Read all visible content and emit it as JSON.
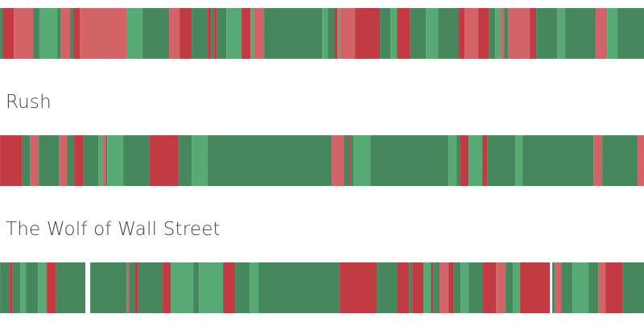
{
  "colors": {
    "dg": "#46875d",
    "lg": "#58aa75",
    "lr": "#d26468",
    "dr": "#c23b43",
    "gap": "#ffffff"
  },
  "chart_data": {
    "type": "heatmap",
    "description_units": "segment durations as percent of film runtime",
    "films": [
      {
        "title": "",
        "segments": [
          [
            "dg",
            0.375
          ],
          [
            "dr",
            1.75
          ],
          [
            "lr",
            3
          ],
          [
            "dg",
            1
          ],
          [
            "lg",
            2.75
          ],
          [
            "dg",
            0.5
          ],
          [
            "lr",
            1.5
          ],
          [
            "dg",
            0.5
          ],
          [
            "dr",
            1
          ],
          [
            "lr",
            7.25
          ],
          [
            "lg",
            2.5
          ],
          [
            "dg",
            4.125
          ],
          [
            "lr",
            1.625
          ],
          [
            "dr",
            1.875
          ],
          [
            "dg",
            2.5
          ],
          [
            "dr",
            0.5
          ],
          [
            "dg",
            0.5
          ],
          [
            "dr",
            0.375
          ],
          [
            "dg",
            1.5
          ],
          [
            "lg",
            2.375
          ],
          [
            "dr",
            1.375
          ],
          [
            "lg",
            0.5
          ],
          [
            "lr",
            1.625
          ],
          [
            "dg",
            9
          ],
          [
            "lg",
            0.875
          ],
          [
            "dg",
            1
          ],
          [
            "dr",
            0.5
          ],
          [
            "lg",
            0.375
          ],
          [
            "lr",
            2.375
          ],
          [
            "dr",
            3.875
          ],
          [
            "dg",
            1.625
          ],
          [
            "lg",
            1
          ],
          [
            "dr",
            2
          ],
          [
            "dg",
            2.5
          ],
          [
            "lg",
            1.875
          ],
          [
            "dg",
            3.125
          ],
          [
            "dr",
            1
          ],
          [
            "lr",
            2.125
          ],
          [
            "dr",
            1.625
          ],
          [
            "dg",
            1
          ],
          [
            "lg",
            0.875
          ],
          [
            "lr",
            0.5
          ],
          [
            "dg",
            0.625
          ],
          [
            "lr",
            3.375
          ],
          [
            "dr",
            1
          ],
          [
            "dg",
            3.25
          ],
          [
            "lg",
            1.25
          ],
          [
            "dg",
            4.75
          ],
          [
            "lr",
            1.75
          ],
          [
            "lg",
            1.625
          ],
          [
            "dg",
            4.125
          ]
        ]
      },
      {
        "title": "Rush",
        "segments": [
          [
            "dr",
            3.375
          ],
          [
            "dg",
            1.25
          ],
          [
            "lr",
            1.375
          ],
          [
            "dg",
            3.125
          ],
          [
            "lr",
            1.25
          ],
          [
            "dg",
            1.125
          ],
          [
            "dr",
            1.375
          ],
          [
            "dg",
            2.375
          ],
          [
            "lg",
            0.625
          ],
          [
            "lr",
            0.5
          ],
          [
            "dg",
            0.25
          ],
          [
            "lg",
            2.5
          ],
          [
            "dg",
            4.125
          ],
          [
            "dr",
            4.5
          ],
          [
            "dg",
            2
          ],
          [
            "lg",
            2.5
          ],
          [
            "dg",
            19.25
          ],
          [
            "lr",
            1.875
          ],
          [
            "dg",
            0.75
          ],
          [
            "dr",
            0.25
          ],
          [
            "dg",
            0.5
          ],
          [
            "lg",
            2.625
          ],
          [
            "dg",
            12.125
          ],
          [
            "lg",
            1.25
          ],
          [
            "dg",
            0.5
          ],
          [
            "dr",
            1.375
          ],
          [
            "lg",
            2.125
          ],
          [
            "dr",
            0.75
          ],
          [
            "dg",
            4.375
          ],
          [
            "lg",
            1.125
          ],
          [
            "dg",
            11
          ],
          [
            "lr",
            1.375
          ],
          [
            "dg",
            5.5
          ],
          [
            "lr",
            1
          ]
        ]
      },
      {
        "title": "The Wolf of Wall Street",
        "segments": [
          [
            "dg",
            1.5
          ],
          [
            "dr",
            0.375
          ],
          [
            "dg",
            1.25
          ],
          [
            "lg",
            0.875
          ],
          [
            "dg",
            1.875
          ],
          [
            "lg",
            1.375
          ],
          [
            "dr",
            1.375
          ],
          [
            "dg",
            4.625
          ],
          [
            "gap",
            0.75
          ],
          [
            "dg",
            5.625
          ],
          [
            "lr",
            0.375
          ],
          [
            "dg",
            0.875
          ],
          [
            "dr",
            0.5
          ],
          [
            "dg",
            3.875
          ],
          [
            "dr",
            1.25
          ],
          [
            "lg",
            3.5
          ],
          [
            "dg",
            0.875
          ],
          [
            "lg",
            3.75
          ],
          [
            "dr",
            1.875
          ],
          [
            "dg",
            2.25
          ],
          [
            "lg",
            1.375
          ],
          [
            "dg",
            12.625
          ],
          [
            "dr",
            5.75
          ],
          [
            "dg",
            3.125
          ],
          [
            "dr",
            1.875
          ],
          [
            "dg",
            0.5
          ],
          [
            "dr",
            1.75
          ],
          [
            "lg",
            1.125
          ],
          [
            "dr",
            0.375
          ],
          [
            "dg",
            1
          ],
          [
            "lr",
            1.375
          ],
          [
            "dr",
            0.75
          ],
          [
            "dg",
            1.125
          ],
          [
            "lg",
            1.25
          ],
          [
            "dg",
            2.125
          ],
          [
            "dr",
            2.125
          ],
          [
            "lr",
            1.5
          ],
          [
            "dg",
            1.125
          ],
          [
            "lg",
            1.125
          ],
          [
            "dr",
            4.625
          ],
          [
            "gap",
            0.375
          ],
          [
            "dg",
            0.375
          ],
          [
            "lr",
            1
          ],
          [
            "dg",
            1.75
          ],
          [
            "lg",
            2.5
          ],
          [
            "dg",
            1.5
          ],
          [
            "lr",
            1.125
          ],
          [
            "dr",
            2.625
          ],
          [
            "dg",
            3.375
          ]
        ]
      }
    ]
  }
}
